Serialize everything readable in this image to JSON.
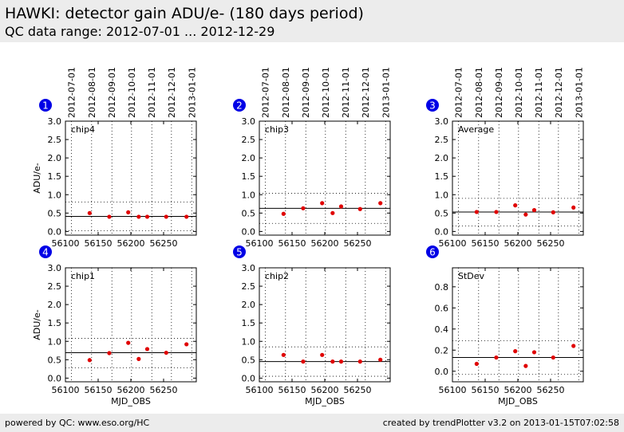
{
  "header": {
    "title": "HAWKI: detector gain ADU/e- (180 days period)",
    "subtitle": "QC data range: 2012-07-01 ... 2012-12-29"
  },
  "footer": {
    "left": "powered by QC: www.eso.org/HC",
    "right": "created by trendPlotter v3.2 on 2013-01-15T07:02:58"
  },
  "colors": {
    "points": "#e00000",
    "badge": "#0000e6"
  },
  "chart_data": [
    {
      "type": "scatter",
      "badge": "1",
      "label": "chip4",
      "ylabel": "ADU/e-",
      "xlabel": "",
      "xlim": [
        56100,
        56300
      ],
      "ylim": [
        -0.1,
        3.0
      ],
      "yticks": [
        0.0,
        0.5,
        1.0,
        1.5,
        2.0,
        2.5,
        3.0
      ],
      "ytick_labels": [
        "0.0",
        "0.5",
        "1.0",
        "1.5",
        "2.0",
        "2.5",
        "3.0"
      ],
      "mean": 0.41,
      "band": [
        0.02,
        0.8
      ],
      "x": [
        56137,
        56167,
        56196,
        56212,
        56225,
        56254,
        56285
      ],
      "y": [
        0.5,
        0.4,
        0.52,
        0.4,
        0.4,
        0.4,
        0.4
      ]
    },
    {
      "type": "scatter",
      "badge": "2",
      "label": "chip3",
      "ylabel": "",
      "xlabel": "",
      "xlim": [
        56100,
        56300
      ],
      "ylim": [
        -0.1,
        3.0
      ],
      "yticks": [
        0.0,
        0.5,
        1.0,
        1.5,
        2.0,
        2.5,
        3.0
      ],
      "ytick_labels": [
        "0.0",
        "0.5",
        "1.0",
        "1.5",
        "2.0",
        "2.5",
        "3.0"
      ],
      "mean": 0.63,
      "band": [
        0.22,
        1.04
      ],
      "x": [
        56137,
        56167,
        56196,
        56212,
        56225,
        56254,
        56285
      ],
      "y": [
        0.48,
        0.63,
        0.77,
        0.5,
        0.68,
        0.61,
        0.77
      ]
    },
    {
      "type": "scatter",
      "badge": "3",
      "label": "Average",
      "ylabel": "",
      "xlabel": "",
      "xlim": [
        56100,
        56300
      ],
      "ylim": [
        -0.1,
        3.0
      ],
      "yticks": [
        0.0,
        0.5,
        1.0,
        1.5,
        2.0,
        2.5,
        3.0
      ],
      "ytick_labels": [
        "0.0",
        "0.5",
        "1.0",
        "1.5",
        "2.0",
        "2.5",
        "3.0"
      ],
      "mean": 0.53,
      "band": [
        0.15,
        0.9
      ],
      "x": [
        56137,
        56167,
        56196,
        56212,
        56225,
        56254,
        56285
      ],
      "y": [
        0.53,
        0.53,
        0.71,
        0.46,
        0.58,
        0.52,
        0.65
      ]
    },
    {
      "type": "scatter",
      "badge": "4",
      "label": "chip1",
      "ylabel": "ADU/e-",
      "xlabel": "MJD_OBS",
      "xlim": [
        56100,
        56300
      ],
      "ylim": [
        -0.1,
        3.0
      ],
      "yticks": [
        0.0,
        0.5,
        1.0,
        1.5,
        2.0,
        2.5,
        3.0
      ],
      "ytick_labels": [
        "0.0",
        "0.5",
        "1.0",
        "1.5",
        "2.0",
        "2.5",
        "3.0"
      ],
      "mean": 0.69,
      "band": [
        0.28,
        1.08
      ],
      "x": [
        56137,
        56167,
        56196,
        56212,
        56225,
        56254,
        56285
      ],
      "y": [
        0.49,
        0.68,
        0.96,
        0.52,
        0.79,
        0.69,
        0.92
      ]
    },
    {
      "type": "scatter",
      "badge": "5",
      "label": "chip2",
      "ylabel": "",
      "xlabel": "MJD_OBS",
      "xlim": [
        56100,
        56300
      ],
      "ylim": [
        -0.1,
        3.0
      ],
      "yticks": [
        0.0,
        0.5,
        1.0,
        1.5,
        2.0,
        2.5,
        3.0
      ],
      "ytick_labels": [
        "0.0",
        "0.5",
        "1.0",
        "1.5",
        "2.0",
        "2.5",
        "3.0"
      ],
      "mean": 0.45,
      "band": [
        0.05,
        0.85
      ],
      "x": [
        56137,
        56167,
        56196,
        56212,
        56225,
        56254,
        56285
      ],
      "y": [
        0.63,
        0.45,
        0.63,
        0.45,
        0.45,
        0.45,
        0.5
      ]
    },
    {
      "type": "scatter",
      "badge": "6",
      "label": "StDev",
      "ylabel": "",
      "xlabel": "MJD_OBS",
      "xlim": [
        56100,
        56300
      ],
      "ylim": [
        -0.1,
        0.98
      ],
      "yticks": [
        0.0,
        0.2,
        0.4,
        0.6,
        0.8
      ],
      "ytick_labels": [
        "0.0",
        "0.2",
        "0.4",
        "0.6",
        "0.8"
      ],
      "mean": 0.13,
      "band": [
        -0.03,
        0.29
      ],
      "x": [
        56137,
        56167,
        56196,
        56212,
        56225,
        56254,
        56285
      ],
      "y": [
        0.07,
        0.13,
        0.19,
        0.05,
        0.18,
        0.13,
        0.24
      ]
    }
  ],
  "x_ticks": [
    56100,
    56150,
    56200,
    56250
  ],
  "x_tick_labels": [
    "56100",
    "56150",
    "56200",
    "56250"
  ],
  "date_ticks": [
    56109,
    56140,
    56171,
    56201,
    56232,
    56262,
    56293
  ],
  "date_labels": [
    "2012-07-01",
    "2012-08-01",
    "2012-09-01",
    "2012-10-01",
    "2012-11-01",
    "2012-12-01",
    "2013-01-01"
  ]
}
